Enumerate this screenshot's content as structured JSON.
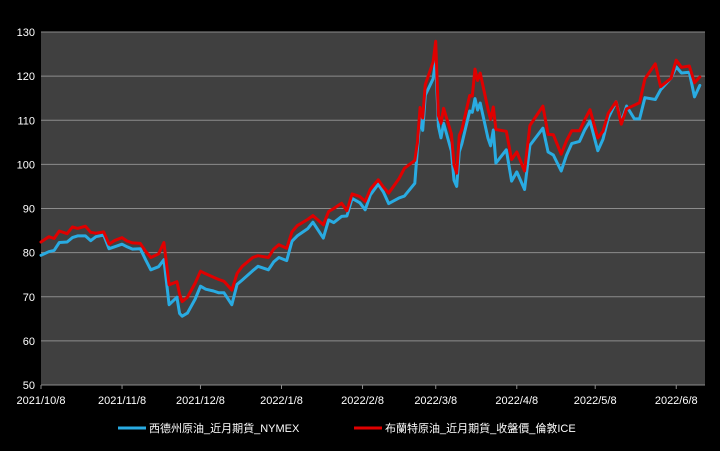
{
  "chart_data": {
    "type": "line",
    "title": "",
    "xlabel": "",
    "ylabel": "",
    "ylim": [
      50,
      130
    ],
    "yticks": [
      50,
      60,
      70,
      80,
      90,
      100,
      110,
      120,
      130
    ],
    "xticks": [
      "2021/10/8",
      "2021/11/8",
      "2021/12/8",
      "2022/1/8",
      "2022/2/8",
      "2022/3/8",
      "2022/4/8",
      "2022/5/8",
      "2022/6/8"
    ],
    "xlim": [
      "2021-10-08",
      "2022-06-19"
    ],
    "grid": true,
    "legend_position": "bottom",
    "colors": {
      "background": "#000000",
      "plot_background": "#404040",
      "gridline": "#8c8c8c",
      "axis_text": "#ffffff"
    },
    "series": [
      {
        "name": "西德州原油_近月期貨_NYMEX",
        "color": "#29abe2",
        "points": [
          [
            "2021-10-08",
            79.4
          ],
          [
            "2021-10-11",
            80.2
          ],
          [
            "2021-10-13",
            80.5
          ],
          [
            "2021-10-15",
            82.3
          ],
          [
            "2021-10-18",
            82.4
          ],
          [
            "2021-10-20",
            83.4
          ],
          [
            "2021-10-22",
            83.8
          ],
          [
            "2021-10-25",
            83.8
          ],
          [
            "2021-10-27",
            82.7
          ],
          [
            "2021-10-29",
            83.6
          ],
          [
            "2021-11-01",
            84.0
          ],
          [
            "2021-11-03",
            80.9
          ],
          [
            "2021-11-05",
            81.3
          ],
          [
            "2021-11-08",
            81.9
          ],
          [
            "2021-11-10",
            81.3
          ],
          [
            "2021-11-12",
            80.8
          ],
          [
            "2021-11-15",
            80.9
          ],
          [
            "2021-11-17",
            78.4
          ],
          [
            "2021-11-19",
            76.1
          ],
          [
            "2021-11-22",
            76.8
          ],
          [
            "2021-11-24",
            78.4
          ],
          [
            "2021-11-26",
            68.2
          ],
          [
            "2021-11-29",
            69.9
          ],
          [
            "2021-11-30",
            66.2
          ],
          [
            "2021-12-01",
            65.6
          ],
          [
            "2021-12-03",
            66.3
          ],
          [
            "2021-12-06",
            69.5
          ],
          [
            "2021-12-08",
            72.4
          ],
          [
            "2021-12-10",
            71.7
          ],
          [
            "2021-12-13",
            71.3
          ],
          [
            "2021-12-15",
            70.9
          ],
          [
            "2021-12-17",
            70.9
          ],
          [
            "2021-12-20",
            68.2
          ],
          [
            "2021-12-22",
            72.8
          ],
          [
            "2021-12-24",
            73.8
          ],
          [
            "2021-12-28",
            75.9
          ],
          [
            "2021-12-30",
            76.9
          ],
          [
            "2022-01-03",
            76.1
          ],
          [
            "2022-01-05",
            77.9
          ],
          [
            "2022-01-07",
            78.9
          ],
          [
            "2022-01-10",
            78.2
          ],
          [
            "2022-01-12",
            82.6
          ],
          [
            "2022-01-14",
            83.8
          ],
          [
            "2022-01-18",
            85.4
          ],
          [
            "2022-01-20",
            86.9
          ],
          [
            "2022-01-24",
            83.3
          ],
          [
            "2022-01-26",
            87.4
          ],
          [
            "2022-01-28",
            86.8
          ],
          [
            "2022-01-31",
            88.2
          ],
          [
            "2022-02-02",
            88.3
          ],
          [
            "2022-02-04",
            92.3
          ],
          [
            "2022-02-07",
            91.3
          ],
          [
            "2022-02-09",
            89.7
          ],
          [
            "2022-02-11",
            93.1
          ],
          [
            "2022-02-14",
            95.5
          ],
          [
            "2022-02-16",
            93.7
          ],
          [
            "2022-02-18",
            91.1
          ],
          [
            "2022-02-22",
            92.4
          ],
          [
            "2022-02-24",
            92.8
          ],
          [
            "2022-02-28",
            95.7
          ],
          [
            "2022-03-01",
            103.4
          ],
          [
            "2022-03-02",
            110.6
          ],
          [
            "2022-03-03",
            107.7
          ],
          [
            "2022-03-04",
            115.7
          ],
          [
            "2022-03-07",
            119.4
          ],
          [
            "2022-03-08",
            123.7
          ],
          [
            "2022-03-09",
            108.7
          ],
          [
            "2022-03-10",
            106.0
          ],
          [
            "2022-03-11",
            109.3
          ],
          [
            "2022-03-14",
            103.0
          ],
          [
            "2022-03-15",
            96.4
          ],
          [
            "2022-03-16",
            95.0
          ],
          [
            "2022-03-17",
            102.9
          ],
          [
            "2022-03-18",
            104.7
          ],
          [
            "2022-03-21",
            112.1
          ],
          [
            "2022-03-22",
            111.8
          ],
          [
            "2022-03-23",
            114.9
          ],
          [
            "2022-03-24",
            112.3
          ],
          [
            "2022-03-25",
            113.9
          ],
          [
            "2022-03-28",
            105.9
          ],
          [
            "2022-03-29",
            104.2
          ],
          [
            "2022-03-30",
            107.8
          ],
          [
            "2022-03-31",
            100.3
          ],
          [
            "2022-04-04",
            103.3
          ],
          [
            "2022-04-06",
            96.2
          ],
          [
            "2022-04-08",
            98.3
          ],
          [
            "2022-04-11",
            94.3
          ],
          [
            "2022-04-13",
            104.3
          ],
          [
            "2022-04-18",
            108.2
          ],
          [
            "2022-04-20",
            102.8
          ],
          [
            "2022-04-22",
            102.1
          ],
          [
            "2022-04-25",
            98.5
          ],
          [
            "2022-04-27",
            102.0
          ],
          [
            "2022-04-29",
            104.7
          ],
          [
            "2022-05-02",
            105.2
          ],
          [
            "2022-05-04",
            107.8
          ],
          [
            "2022-05-06",
            109.8
          ],
          [
            "2022-05-09",
            103.1
          ],
          [
            "2022-05-11",
            105.7
          ],
          [
            "2022-05-13",
            110.5
          ],
          [
            "2022-05-16",
            114.2
          ],
          [
            "2022-05-18",
            109.6
          ],
          [
            "2022-05-20",
            113.2
          ],
          [
            "2022-05-23",
            110.3
          ],
          [
            "2022-05-25",
            110.3
          ],
          [
            "2022-05-27",
            115.1
          ],
          [
            "2022-05-31",
            114.7
          ],
          [
            "2022-06-02",
            116.9
          ],
          [
            "2022-06-06",
            119.5
          ],
          [
            "2022-06-08",
            122.1
          ],
          [
            "2022-06-10",
            120.7
          ],
          [
            "2022-06-13",
            120.9
          ],
          [
            "2022-06-15",
            115.3
          ],
          [
            "2022-06-17",
            117.9
          ]
        ]
      },
      {
        "name": "布蘭特原油_近月期貨_收盤價_倫敦ICE",
        "color": "#e00000",
        "points": [
          [
            "2021-10-08",
            82.4
          ],
          [
            "2021-10-11",
            83.6
          ],
          [
            "2021-10-13",
            83.2
          ],
          [
            "2021-10-15",
            84.9
          ],
          [
            "2021-10-18",
            84.3
          ],
          [
            "2021-10-20",
            85.8
          ],
          [
            "2021-10-22",
            85.5
          ],
          [
            "2021-10-25",
            86.0
          ],
          [
            "2021-10-27",
            84.6
          ],
          [
            "2021-10-29",
            84.4
          ],
          [
            "2021-11-01",
            84.7
          ],
          [
            "2021-11-03",
            81.9
          ],
          [
            "2021-11-05",
            82.7
          ],
          [
            "2021-11-08",
            83.4
          ],
          [
            "2021-11-10",
            82.6
          ],
          [
            "2021-11-12",
            82.2
          ],
          [
            "2021-11-15",
            82.1
          ],
          [
            "2021-11-17",
            80.3
          ],
          [
            "2021-11-19",
            78.9
          ],
          [
            "2021-11-22",
            79.7
          ],
          [
            "2021-11-24",
            82.3
          ],
          [
            "2021-11-26",
            72.7
          ],
          [
            "2021-11-29",
            73.4
          ],
          [
            "2021-11-30",
            70.6
          ],
          [
            "2021-12-01",
            68.9
          ],
          [
            "2021-12-03",
            69.9
          ],
          [
            "2021-12-06",
            73.1
          ],
          [
            "2021-12-08",
            75.8
          ],
          [
            "2021-12-10",
            75.2
          ],
          [
            "2021-12-13",
            74.4
          ],
          [
            "2021-12-15",
            73.9
          ],
          [
            "2021-12-17",
            73.5
          ],
          [
            "2021-12-20",
            71.5
          ],
          [
            "2021-12-22",
            75.3
          ],
          [
            "2021-12-24",
            76.9
          ],
          [
            "2021-12-28",
            78.9
          ],
          [
            "2021-12-30",
            79.3
          ],
          [
            "2022-01-03",
            78.9
          ],
          [
            "2022-01-05",
            80.8
          ],
          [
            "2022-01-07",
            81.8
          ],
          [
            "2022-01-10",
            81.0
          ],
          [
            "2022-01-12",
            84.7
          ],
          [
            "2022-01-14",
            86.1
          ],
          [
            "2022-01-18",
            87.5
          ],
          [
            "2022-01-20",
            88.4
          ],
          [
            "2022-01-24",
            86.3
          ],
          [
            "2022-01-26",
            89.3
          ],
          [
            "2022-01-28",
            90.0
          ],
          [
            "2022-01-31",
            91.2
          ],
          [
            "2022-02-02",
            89.5
          ],
          [
            "2022-02-04",
            93.3
          ],
          [
            "2022-02-07",
            92.7
          ],
          [
            "2022-02-09",
            91.6
          ],
          [
            "2022-02-11",
            94.4
          ],
          [
            "2022-02-14",
            96.5
          ],
          [
            "2022-02-16",
            94.8
          ],
          [
            "2022-02-18",
            93.5
          ],
          [
            "2022-02-22",
            96.8
          ],
          [
            "2022-02-24",
            99.1
          ],
          [
            "2022-02-28",
            100.9
          ],
          [
            "2022-03-01",
            104.9
          ],
          [
            "2022-03-02",
            112.9
          ],
          [
            "2022-03-03",
            110.5
          ],
          [
            "2022-03-04",
            118.1
          ],
          [
            "2022-03-07",
            123.2
          ],
          [
            "2022-03-08",
            127.9
          ],
          [
            "2022-03-09",
            111.1
          ],
          [
            "2022-03-10",
            109.3
          ],
          [
            "2022-03-11",
            112.7
          ],
          [
            "2022-03-14",
            106.9
          ],
          [
            "2022-03-15",
            99.9
          ],
          [
            "2022-03-16",
            98.0
          ],
          [
            "2022-03-17",
            106.6
          ],
          [
            "2022-03-18",
            107.9
          ],
          [
            "2022-03-21",
            115.6
          ],
          [
            "2022-03-22",
            115.5
          ],
          [
            "2022-03-23",
            121.6
          ],
          [
            "2022-03-24",
            119.0
          ],
          [
            "2022-03-25",
            120.7
          ],
          [
            "2022-03-28",
            112.5
          ],
          [
            "2022-03-29",
            110.2
          ],
          [
            "2022-03-30",
            113.0
          ],
          [
            "2022-03-31",
            107.9
          ],
          [
            "2022-04-04",
            107.5
          ],
          [
            "2022-04-06",
            101.1
          ],
          [
            "2022-04-08",
            102.8
          ],
          [
            "2022-04-11",
            98.5
          ],
          [
            "2022-04-13",
            108.8
          ],
          [
            "2022-04-18",
            113.2
          ],
          [
            "2022-04-20",
            106.8
          ],
          [
            "2022-04-22",
            106.7
          ],
          [
            "2022-04-25",
            102.3
          ],
          [
            "2022-04-27",
            105.3
          ],
          [
            "2022-04-29",
            107.6
          ],
          [
            "2022-05-02",
            107.6
          ],
          [
            "2022-05-04",
            110.1
          ],
          [
            "2022-05-06",
            112.4
          ],
          [
            "2022-05-09",
            106.0
          ],
          [
            "2022-05-11",
            107.5
          ],
          [
            "2022-05-13",
            111.6
          ],
          [
            "2022-05-16",
            114.2
          ],
          [
            "2022-05-18",
            109.1
          ],
          [
            "2022-05-20",
            112.6
          ],
          [
            "2022-05-23",
            113.4
          ],
          [
            "2022-05-25",
            114.0
          ],
          [
            "2022-05-27",
            119.4
          ],
          [
            "2022-05-31",
            122.8
          ],
          [
            "2022-06-02",
            117.6
          ],
          [
            "2022-06-06",
            119.5
          ],
          [
            "2022-06-08",
            123.6
          ],
          [
            "2022-06-10",
            122.0
          ],
          [
            "2022-06-13",
            122.3
          ],
          [
            "2022-06-15",
            118.5
          ],
          [
            "2022-06-17",
            119.8
          ]
        ]
      }
    ]
  }
}
